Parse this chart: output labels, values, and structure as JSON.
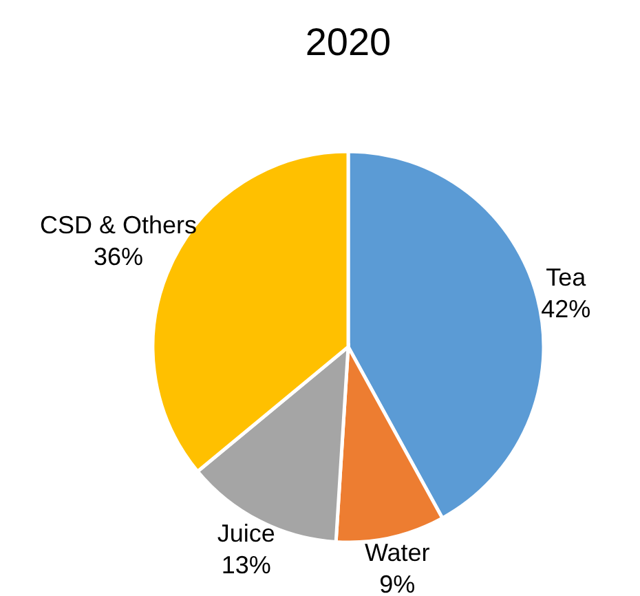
{
  "chart_data": {
    "type": "pie",
    "title": "2020",
    "categories": [
      "Tea",
      "Water",
      "Juice",
      "CSD & Others"
    ],
    "values": [
      42,
      9,
      13,
      36
    ],
    "value_labels": [
      "42%",
      "9%",
      "13%",
      "36%"
    ],
    "colors": [
      "#5b9bd5",
      "#ed7d31",
      "#a5a5a5",
      "#ffc000"
    ]
  }
}
